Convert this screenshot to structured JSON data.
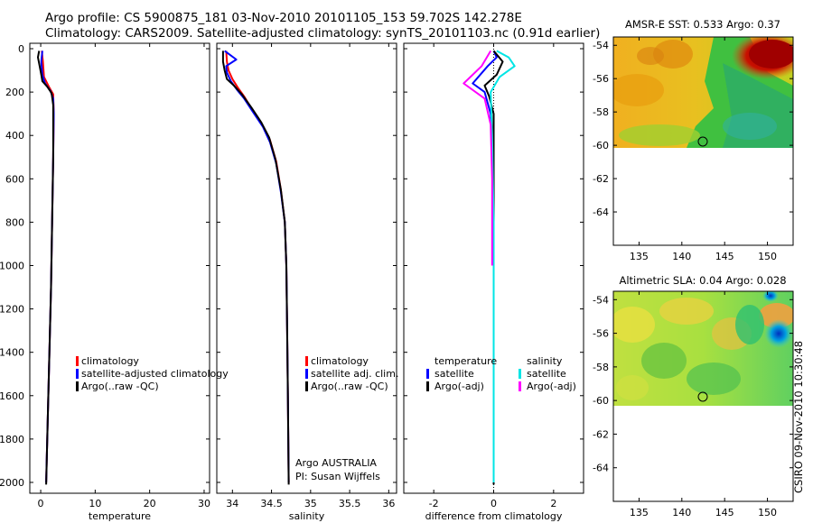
{
  "header": {
    "line1": "Argo profile: CS 5900875_181 03-Nov-2010 20101105_153 59.702S 142.278E",
    "line2": "Climatology: CARS2009. Satellite-adjusted climatology: synTS_20101103.nc (0.91d earlier)"
  },
  "footer_rotated": "CSIRO 09-Nov-2010 10:30:48",
  "colors": {
    "red": "#ff0000",
    "blue": "#0000ff",
    "black": "#000000",
    "cyan": "#00e5e5",
    "magenta": "#ff00ff"
  },
  "chart_data": [
    {
      "type": "line",
      "name": "temperature-profile",
      "xlabel": "temperature",
      "ylabel": "",
      "xlim": [
        -2,
        31
      ],
      "ylim": [
        2050,
        -25
      ],
      "y_reversed": true,
      "xticks": [
        0,
        10,
        20,
        30
      ],
      "yticks": [
        0,
        200,
        400,
        600,
        800,
        1000,
        1200,
        1400,
        1600,
        1800,
        2000
      ],
      "series": [
        {
          "name": "climatology",
          "color": "red",
          "points": [
            [
              0.2,
              10
            ],
            [
              0.4,
              60
            ],
            [
              0.6,
              130
            ],
            [
              1.5,
              175
            ],
            [
              2.3,
              210
            ],
            [
              2.4,
              300
            ],
            [
              2.3,
              500
            ],
            [
              2.1,
              800
            ],
            [
              1.9,
              1100
            ],
            [
              1.6,
              1400
            ],
            [
              1.3,
              1700
            ],
            [
              1.0,
              2000
            ]
          ]
        },
        {
          "name": "satellite-adjusted climatology",
          "color": "blue",
          "points": [
            [
              0.3,
              10
            ],
            [
              0.1,
              60
            ],
            [
              0.3,
              120
            ],
            [
              0.8,
              160
            ],
            [
              1.8,
              195
            ],
            [
              2.3,
              230
            ],
            [
              2.4,
              300
            ],
            [
              2.3,
              500
            ],
            [
              2.1,
              800
            ],
            [
              1.9,
              1100
            ],
            [
              1.6,
              1400
            ],
            [
              1.3,
              1700
            ],
            [
              1.0,
              2000
            ]
          ]
        },
        {
          "name": "Argo(..raw -QC)",
          "color": "black",
          "points": [
            [
              -0.3,
              10
            ],
            [
              -0.5,
              40
            ],
            [
              -0.2,
              80
            ],
            [
              0.1,
              120
            ],
            [
              0.3,
              150
            ],
            [
              1.2,
              175
            ],
            [
              2.0,
              205
            ],
            [
              2.3,
              260
            ],
            [
              2.3,
              500
            ],
            [
              2.1,
              800
            ],
            [
              1.9,
              1100
            ],
            [
              1.6,
              1400
            ],
            [
              1.3,
              1700
            ],
            [
              1.0,
              2010
            ]
          ]
        }
      ],
      "legend": [
        "climatology",
        "satellite-adjusted climatology",
        "Argo(..raw -QC)"
      ]
    },
    {
      "type": "line",
      "name": "salinity-profile",
      "xlabel": "salinity",
      "xlim": [
        33.8,
        36.1
      ],
      "ylim": [
        2050,
        -25
      ],
      "y_reversed": true,
      "xticks": [
        34,
        34.5,
        35,
        35.5,
        36
      ],
      "series": [
        {
          "name": "climatology",
          "color": "red",
          "points": [
            [
              33.92,
              10
            ],
            [
              33.93,
              60
            ],
            [
              33.95,
              100
            ],
            [
              34.0,
              140
            ],
            [
              34.07,
              180
            ],
            [
              34.15,
              220
            ],
            [
              34.25,
              280
            ],
            [
              34.38,
              350
            ],
            [
              34.48,
              420
            ],
            [
              34.56,
              520
            ],
            [
              34.62,
              650
            ],
            [
              34.67,
              800
            ],
            [
              34.69,
              1000
            ],
            [
              34.7,
              1300
            ],
            [
              34.71,
              1600
            ],
            [
              34.72,
              2000
            ]
          ]
        },
        {
          "name": "satellite adj. clim.",
          "color": "blue",
          "points": [
            [
              33.9,
              10
            ],
            [
              34.05,
              50
            ],
            [
              33.92,
              80
            ],
            [
              33.93,
              110
            ],
            [
              33.98,
              150
            ],
            [
              34.06,
              190
            ],
            [
              34.15,
              230
            ],
            [
              34.26,
              290
            ],
            [
              34.39,
              360
            ],
            [
              34.48,
              430
            ],
            [
              34.56,
              530
            ],
            [
              34.62,
              660
            ],
            [
              34.67,
              800
            ],
            [
              34.69,
              1000
            ],
            [
              34.7,
              1300
            ],
            [
              34.71,
              1600
            ],
            [
              34.72,
              2000
            ]
          ]
        },
        {
          "name": "Argo(..raw -QC)",
          "color": "black",
          "points": [
            [
              33.88,
              10
            ],
            [
              33.88,
              60
            ],
            [
              33.9,
              100
            ],
            [
              33.93,
              140
            ],
            [
              34.02,
              170
            ],
            [
              34.12,
              210
            ],
            [
              34.24,
              270
            ],
            [
              34.37,
              340
            ],
            [
              34.47,
              410
            ],
            [
              34.55,
              510
            ],
            [
              34.62,
              650
            ],
            [
              34.67,
              800
            ],
            [
              34.69,
              1000
            ],
            [
              34.7,
              1300
            ],
            [
              34.71,
              1600
            ],
            [
              34.72,
              2010
            ]
          ]
        }
      ],
      "legend": [
        "climatology",
        "satellite adj. clim.",
        "Argo(..raw -QC)"
      ],
      "annotations": [
        "Argo AUSTRALIA",
        "PI: Susan Wijffels"
      ]
    },
    {
      "type": "line",
      "name": "difference-profile",
      "xlabel": "difference from climatology",
      "xlim": [
        -3,
        3
      ],
      "ylim": [
        2050,
        -25
      ],
      "y_reversed": true,
      "xticks": [
        -2,
        0,
        2
      ],
      "series": [
        {
          "name": "temperature satellite",
          "color": "blue",
          "points": [
            [
              0.0,
              10
            ],
            [
              0.1,
              40
            ],
            [
              -0.2,
              80
            ],
            [
              -0.7,
              160
            ],
            [
              -0.3,
              200
            ],
            [
              -0.1,
              300
            ],
            [
              0.0,
              500
            ],
            [
              0.0,
              800
            ],
            [
              0.0,
              2000
            ]
          ]
        },
        {
          "name": "temperature Argo(-adj)",
          "color": "black",
          "points": [
            [
              0.0,
              10
            ],
            [
              0.3,
              60
            ],
            [
              0.1,
              120
            ],
            [
              -0.3,
              170
            ],
            [
              -0.15,
              220
            ],
            [
              0.0,
              300
            ],
            [
              0.0,
              500
            ],
            [
              0.0,
              2010
            ]
          ]
        },
        {
          "name": "salinity satellite",
          "color": "cyan",
          "points": [
            [
              0.1,
              10
            ],
            [
              0.5,
              40
            ],
            [
              0.7,
              80
            ],
            [
              0.2,
              130
            ],
            [
              -0.1,
              200
            ],
            [
              -0.05,
              400
            ],
            [
              0.0,
              800
            ],
            [
              0.0,
              2000
            ]
          ]
        },
        {
          "name": "salinity Argo(-adj)",
          "color": "magenta",
          "points": [
            [
              -0.1,
              10
            ],
            [
              -0.4,
              80
            ],
            [
              -1.0,
              160
            ],
            [
              -0.3,
              230
            ],
            [
              -0.1,
              350
            ],
            [
              -0.05,
              600
            ],
            [
              -0.05,
              1000
            ]
          ]
        }
      ],
      "legend_headers": [
        "temperature",
        "salinity"
      ],
      "legend": [
        "satellite",
        "Argo(-adj)",
        "satellite",
        "Argo(-adj)"
      ]
    },
    {
      "type": "heatmap",
      "name": "sst-map",
      "title": "AMSR-E SST: 0.533 Argo: 0.37",
      "xlim": [
        132,
        153
      ],
      "ylim": [
        -66,
        -53.5
      ],
      "xticks": [
        135,
        140,
        145,
        150
      ],
      "yticks": [
        -54,
        -56,
        -58,
        -60,
        -62,
        -64
      ],
      "data_ylim": [
        -60.2,
        -53.5
      ],
      "float_position": [
        142.278,
        -59.702
      ]
    },
    {
      "type": "heatmap",
      "name": "sla-map",
      "title": "Altimetric SLA: 0.04 Argo: 0.028",
      "xlim": [
        132,
        153
      ],
      "ylim": [
        -66,
        -53.5
      ],
      "xticks": [
        135,
        140,
        145,
        150
      ],
      "yticks": [
        -54,
        -56,
        -58,
        -60,
        -62,
        -64
      ],
      "data_ylim": [
        -60.2,
        -53.5
      ],
      "float_position": [
        142.278,
        -59.702
      ]
    }
  ]
}
